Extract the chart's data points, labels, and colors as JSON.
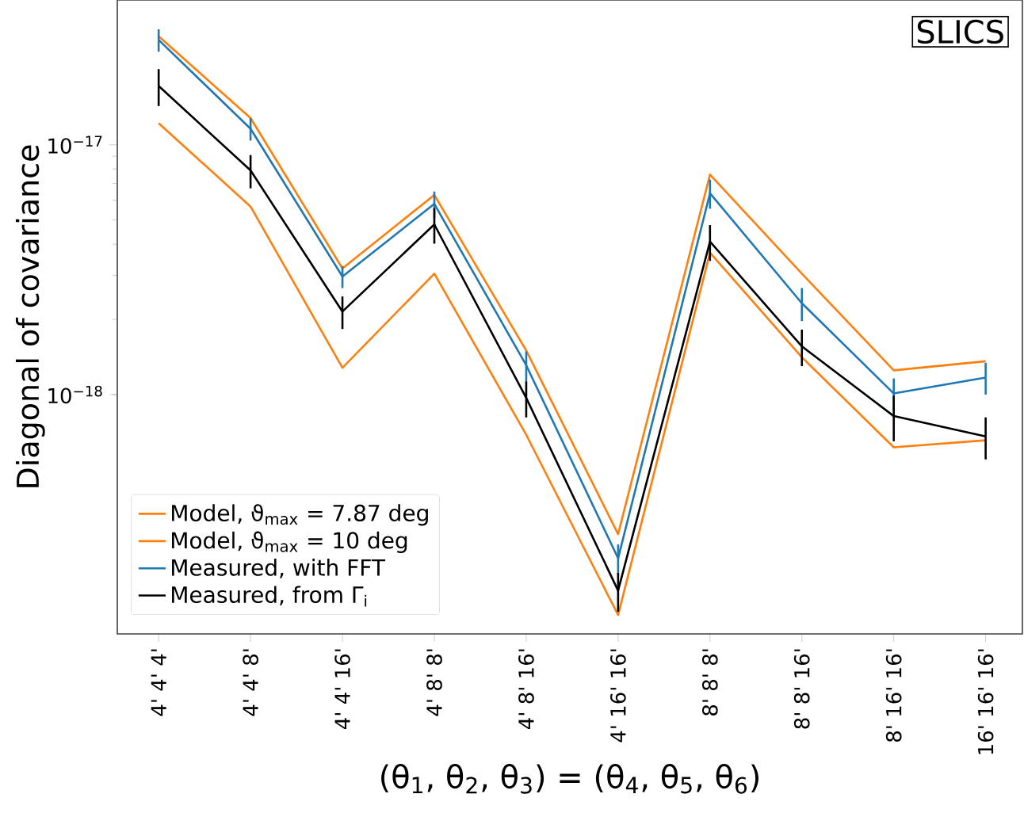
{
  "chart_data": {
    "type": "line",
    "xlabel": "(θ$_{1}$, θ$_{2}$, θ$_{3}$) = (θ$_{4}$, θ$_{5}$, θ$_{6}$)",
    "ylabel": "Diagonal of covariance",
    "log": "y",
    "categories": [
      "4' 4' 4'",
      "4' 4' 8'",
      "4' 4' 16'",
      "4' 8' 8'",
      "4' 8' 16'",
      "4' 16' 16'",
      "8' 8' 8'",
      "8' 8' 16'",
      "8' 16' 16'",
      "16' 16' 16'"
    ],
    "ylim": [
      1.1e-19,
      3.8e-17
    ],
    "yticks": [
      {
        "value": 1e-18,
        "label": "10$^{−18}$"
      },
      {
        "value": 1e-17,
        "label": "10$^{−17}$"
      }
    ],
    "legend": "bottom left",
    "grid": false,
    "annotations": [
      "SLICS"
    ],
    "series": [
      {
        "name": "Model, ϑ$_{max}$ = 7.87 deg",
        "color": "#ff7f0e",
        "values": [
          2.72e-17,
          1.28e-17,
          3.2e-18,
          6.3e-18,
          1.5e-18,
          2.76e-19,
          7.6e-18,
          3.05e-18,
          1.25e-18,
          1.36e-18
        ]
      },
      {
        "name": "Model, ϑ$_{max}$ = 10 deg",
        "color": "#ff7f0e",
        "values": [
          1.22e-17,
          5.66e-18,
          1.28e-18,
          3.05e-18,
          6.9e-19,
          1.31e-19,
          3.7e-18,
          1.41e-18,
          6.15e-19,
          6.56e-19
        ]
      },
      {
        "name": "Measured, with FFT",
        "color": "#1f77b4",
        "values": [
          2.63e-17,
          1.16e-17,
          2.97e-18,
          5.8e-18,
          1.31e-18,
          2.21e-19,
          6.4e-18,
          2.32e-18,
          1.01e-18,
          1.17e-18
        ],
        "errors": [
          2.7e-18,
          1.2e-18,
          3e-19,
          7e-19,
          1.8e-19,
          3e-20,
          8.5e-19,
          3.5e-19,
          1.5e-19,
          1.7e-19
        ]
      },
      {
        "name": "Measured, from Γ$_{i}$",
        "color": "#000000",
        "values": [
          1.72e-17,
          7.9e-18,
          2.15e-18,
          4.8e-18,
          9.7e-19,
          1.64e-19,
          4.1e-18,
          1.56e-18,
          8.2e-19,
          6.8e-19
        ],
        "errors": [
          2.9e-18,
          1.2e-18,
          3.2e-19,
          7.8e-19,
          1.6e-19,
          2.9e-20,
          6.7e-19,
          2.6e-19,
          1.7e-19,
          1.3e-19
        ]
      }
    ]
  }
}
